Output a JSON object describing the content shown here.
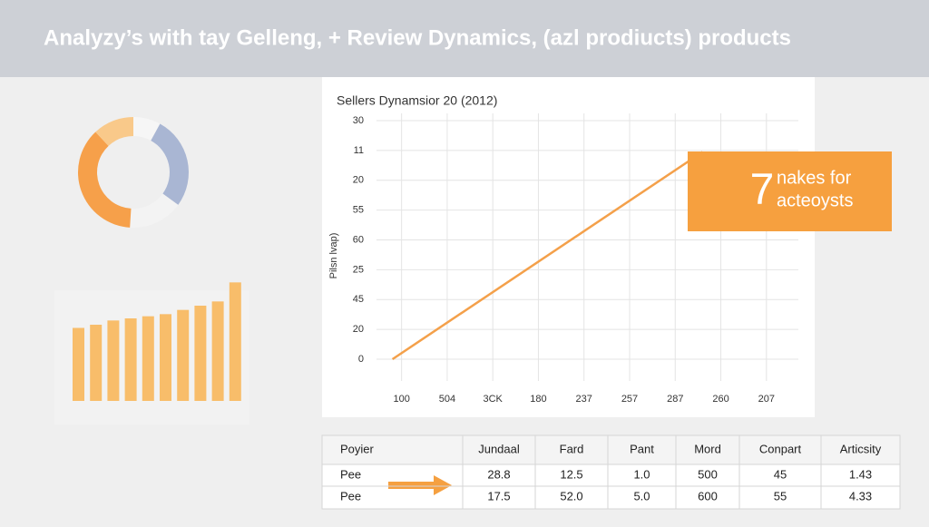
{
  "header": {
    "title": "Analyzy’s with  tay Gelleng, + Review Dynamics, (azl prodiucts) products"
  },
  "chart_data": [
    {
      "type": "pie",
      "values": [
        8,
        27,
        16,
        37,
        12
      ],
      "colors": [
        "#f6f6f6",
        "#a9b6d3",
        "#f3f3f3",
        "#f6a04a",
        "#f9c98a"
      ]
    },
    {
      "type": "bar",
      "values": [
        69,
        72,
        76,
        78,
        80,
        82,
        86,
        90,
        94,
        112
      ],
      "color": "#f8bd6a",
      "ylim": [
        0,
        120
      ]
    },
    {
      "type": "line",
      "title": "Sellers Dynamsior 20 (2012)",
      "ylabel": "Pilsn lvap)",
      "x": [
        -0.2,
        6.6
      ],
      "series": [
        {
          "color": "#f4a04a",
          "values": [
            0,
            6.95
          ]
        }
      ],
      "xlim": [
        -0.55,
        8.7
      ],
      "ylim": [
        0,
        8
      ],
      "grid": true,
      "xticks": [
        {
          "value": 0,
          "label": "100"
        },
        {
          "value": 1,
          "label": "504"
        },
        {
          "value": 2,
          "label": "3CK"
        },
        {
          "value": 3,
          "label": "180"
        },
        {
          "value": 4,
          "label": "237"
        },
        {
          "value": 5,
          "label": "257"
        },
        {
          "value": 6,
          "label": "287"
        },
        {
          "value": 7,
          "label": "260"
        },
        {
          "value": 8,
          "label": "207"
        }
      ],
      "yticks": [
        {
          "value": 0,
          "label": "0"
        },
        {
          "value": 1,
          "label": "20"
        },
        {
          "value": 2,
          "label": "45"
        },
        {
          "value": 3,
          "label": "25"
        },
        {
          "value": 4,
          "label": "60"
        },
        {
          "value": 5,
          "label": "55"
        },
        {
          "value": 6,
          "label": "20"
        },
        {
          "value": 7,
          "label": "11"
        },
        {
          "value": 8,
          "label": "30"
        }
      ]
    }
  ],
  "callout": {
    "number": "7",
    "text": [
      "nakes for",
      "acteoysts"
    ]
  },
  "table": {
    "header": [
      "Poyier",
      "Jundaal",
      "Fard",
      "Pant",
      "Mord",
      "Conpart",
      "Articsity"
    ],
    "rows": [
      [
        "Pee",
        "28.8",
        "12.5",
        "1.0",
        "500",
        "45",
        "1.43"
      ],
      [
        "Pee",
        "17.5",
        "52.0",
        "5.0",
        "600",
        "55",
        "4.33"
      ]
    ]
  }
}
